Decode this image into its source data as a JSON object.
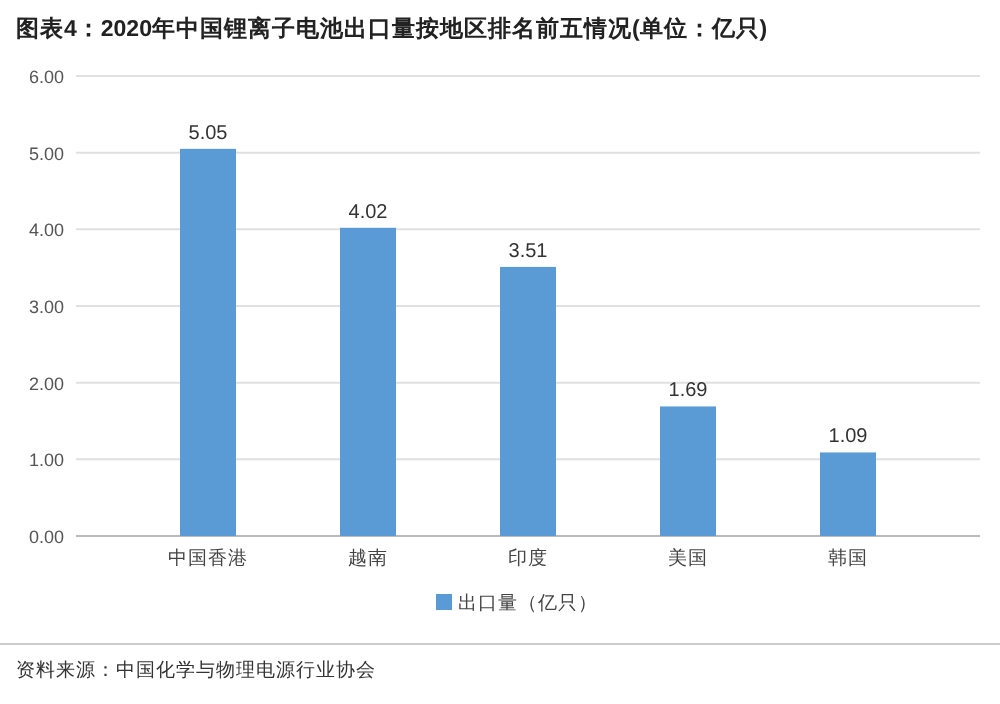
{
  "chart_data": {
    "type": "bar",
    "title": "图表4：2020年中国锂离子电池出口量按地区排名前五情况(单位：亿只)",
    "categories": [
      "中国香港",
      "越南",
      "印度",
      "美国",
      "韩国"
    ],
    "series": [
      {
        "name": "出口量（亿只）",
        "color": "#5b9bd5",
        "values": [
          5.05,
          4.02,
          3.51,
          1.69,
          1.09
        ]
      }
    ],
    "ylim": [
      0,
      6
    ],
    "yticks": [
      {
        "value": 0,
        "label": "0.00"
      },
      {
        "value": 1,
        "label": "1.00"
      },
      {
        "value": 2,
        "label": "2.00"
      },
      {
        "value": 3,
        "label": "3.00"
      },
      {
        "value": 4,
        "label": "4.00"
      },
      {
        "value": 5,
        "label": "5.00"
      },
      {
        "value": 6,
        "label": "6.00"
      }
    ],
    "grid": "y",
    "legend": "bottom",
    "data_labels": true,
    "annotations": [
      "资料来源：中国化学与物理电源行业协会"
    ]
  }
}
